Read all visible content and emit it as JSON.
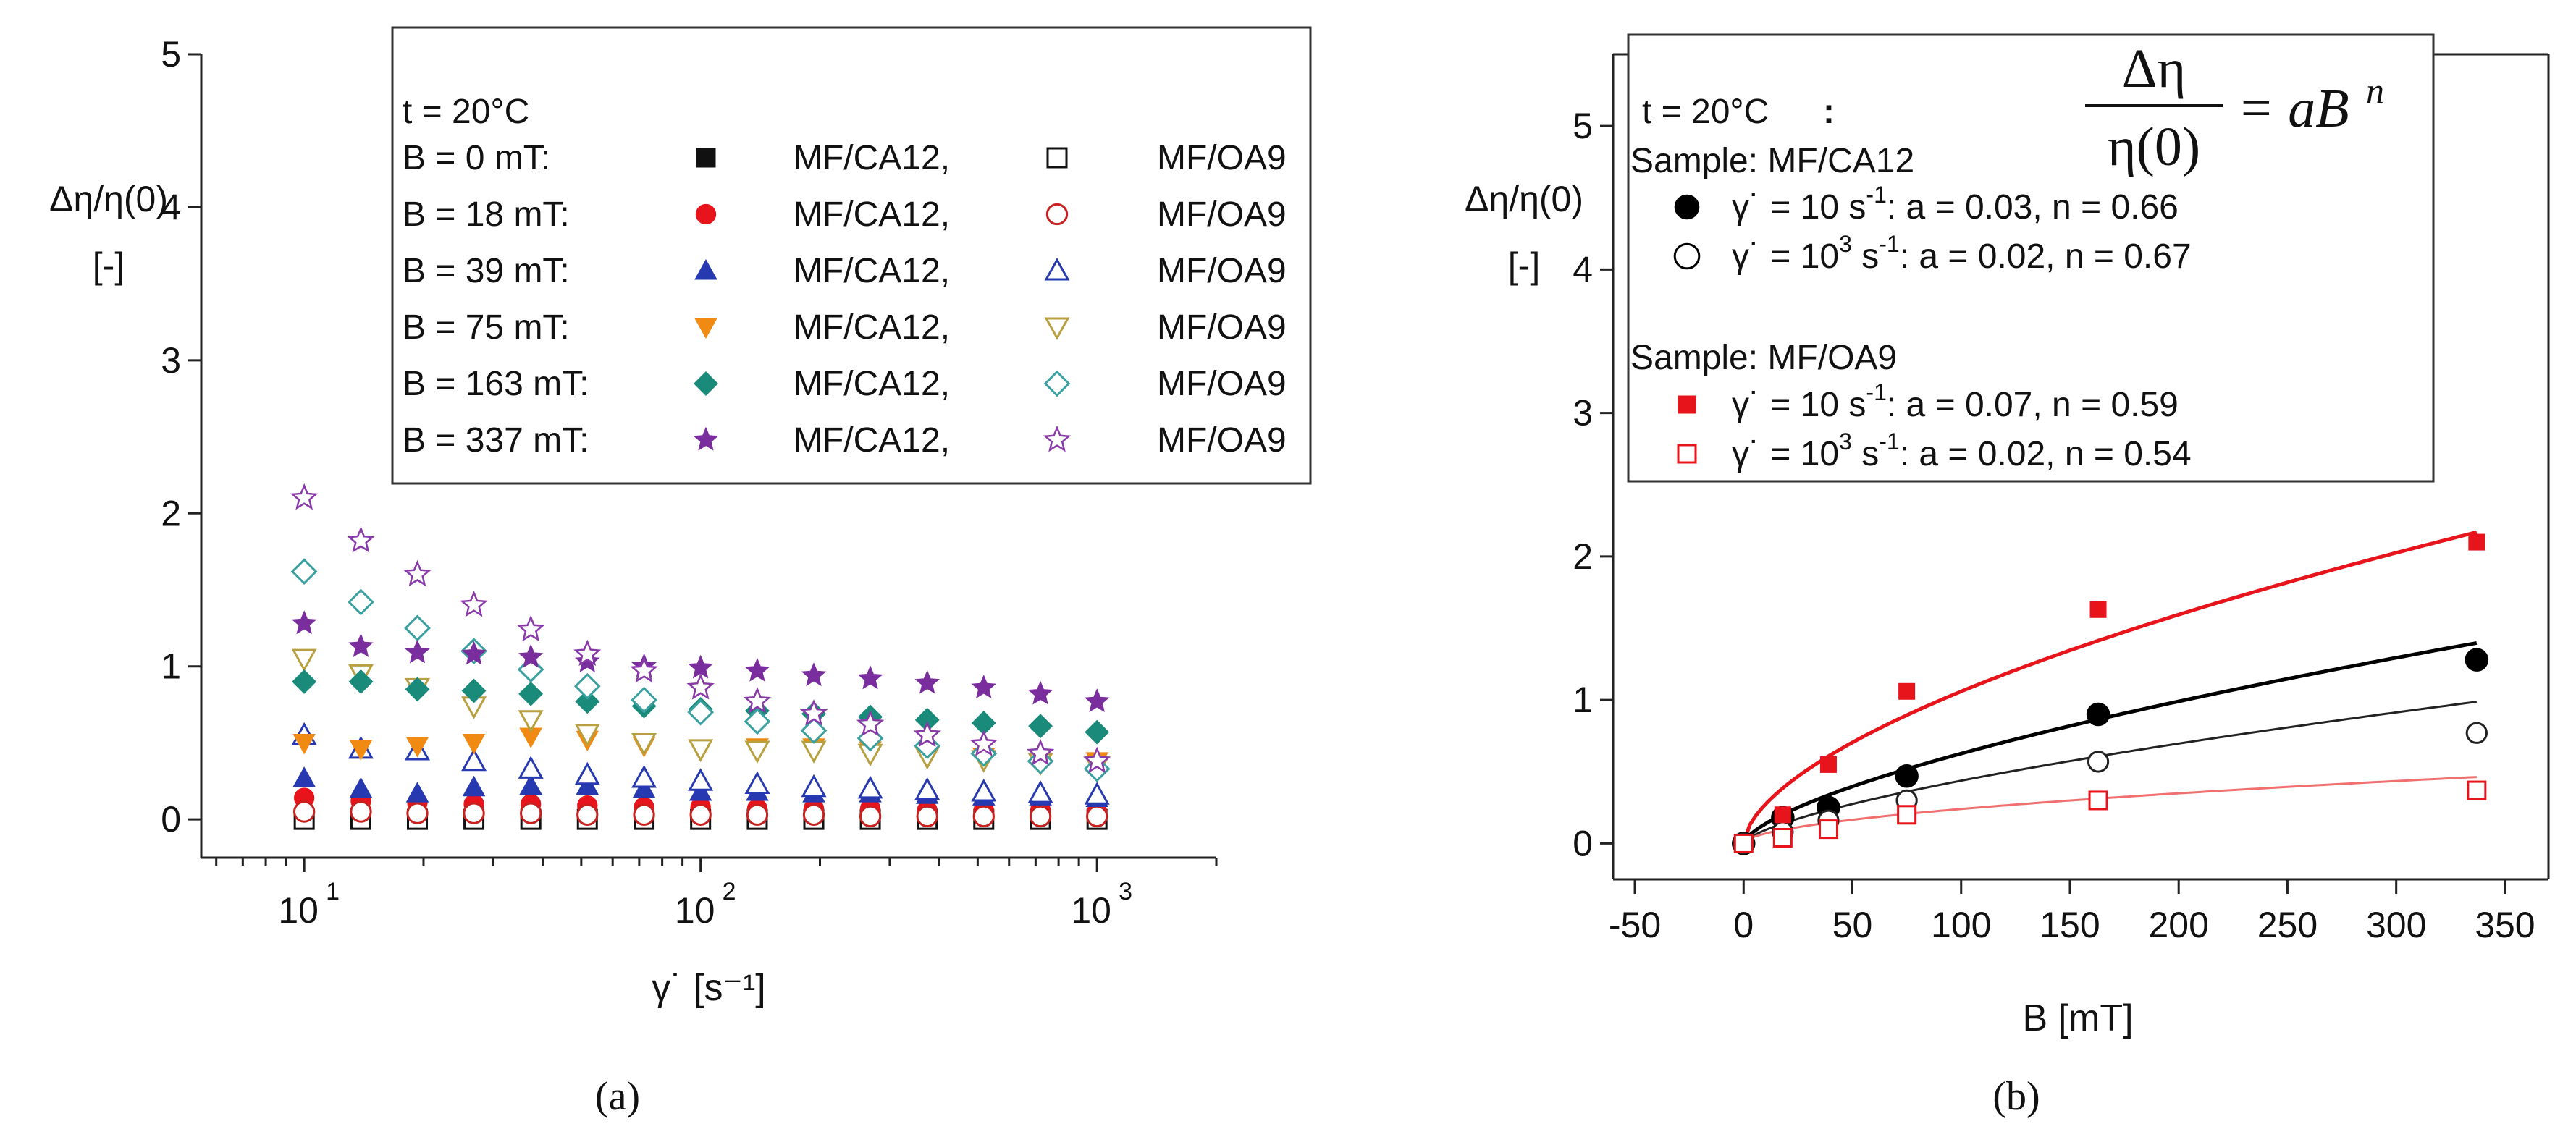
{
  "chart_data": [
    {
      "type": "scatter",
      "panel": "(a)",
      "xlabel": "γ˙ [s⁻¹]",
      "ylabel": "Δη/η(0)",
      "yunit": "[-]",
      "xscale": "log",
      "xlim": [
        5.5,
        2000
      ],
      "ylim": [
        -0.25,
        5
      ],
      "x_ticks": [
        {
          "v": 10,
          "base": "10",
          "exp": "1"
        },
        {
          "v": 100,
          "base": "10",
          "exp": "2"
        },
        {
          "v": 1000,
          "base": "10",
          "exp": "3"
        }
      ],
      "y_ticks": [
        "0",
        "1",
        "2",
        "3",
        "4",
        "5"
      ],
      "x": [
        10,
        13.9,
        19.3,
        26.8,
        37.3,
        51.8,
        72,
        100,
        139,
        193,
        268,
        373,
        518,
        720,
        1000
      ],
      "legend": {
        "title": "t = 20°C",
        "position": "top-right",
        "rows": [
          {
            "label": "B =   0 mT:",
            "a": "MF/CA12,",
            "b": "MF/OA9"
          },
          {
            "label": "B =  18 mT:",
            "a": "MF/CA12,",
            "b": "MF/OA9"
          },
          {
            "label": "B =  39 mT:",
            "a": "MF/CA12,",
            "b": "MF/OA9"
          },
          {
            "label": "B =  75 mT:",
            "a": "MF/CA12,",
            "b": "MF/OA9"
          },
          {
            "label": "B = 163 mT:",
            "a": "MF/CA12,",
            "b": "MF/OA9"
          },
          {
            "label": "B = 337 mT:",
            "a": "MF/CA12,",
            "b": "MF/OA9"
          }
        ]
      },
      "series": [
        {
          "name": "B = 0 mT, MF/CA12",
          "marker": "square",
          "filled": true,
          "color": "#111111",
          "values": [
            0,
            0,
            0,
            0,
            0,
            0,
            0,
            0,
            0,
            0,
            0,
            0,
            0,
            0,
            0
          ]
        },
        {
          "name": "B = 0 mT, MF/OA9",
          "marker": "square",
          "filled": false,
          "color": "#111111",
          "values": [
            0,
            0,
            0,
            0,
            0,
            0,
            0,
            0,
            0,
            0,
            0,
            0,
            0,
            0,
            0
          ]
        },
        {
          "name": "B = 18 mT, MF/CA12",
          "marker": "circle",
          "filled": true,
          "color": "#e8141c",
          "values": [
            0.14,
            0.12,
            0.11,
            0.1,
            0.1,
            0.09,
            0.08,
            0.08,
            0.07,
            0.07,
            0.07,
            0.06,
            0.06,
            0.06,
            0.05
          ]
        },
        {
          "name": "B = 18 mT, MF/OA9",
          "marker": "circle",
          "filled": false,
          "color": "#c8201e",
          "values": [
            0.05,
            0.05,
            0.04,
            0.04,
            0.04,
            0.03,
            0.03,
            0.03,
            0.03,
            0.03,
            0.02,
            0.02,
            0.02,
            0.02,
            0.02
          ]
        },
        {
          "name": "B = 39 mT, MF/CA12",
          "marker": "triangle-up",
          "filled": true,
          "color": "#2639b0",
          "values": [
            0.27,
            0.2,
            0.17,
            0.21,
            0.22,
            0.22,
            0.2,
            0.18,
            0.18,
            0.17,
            0.17,
            0.16,
            0.15,
            0.15,
            0.14
          ]
        },
        {
          "name": "B = 39 mT, MF/OA9",
          "marker": "triangle-up",
          "filled": false,
          "color": "#2639b0",
          "values": [
            0.55,
            0.46,
            0.45,
            0.38,
            0.33,
            0.29,
            0.27,
            0.25,
            0.23,
            0.21,
            0.2,
            0.19,
            0.18,
            0.17,
            0.16
          ]
        },
        {
          "name": "B = 75 mT, MF/CA12",
          "marker": "triangle-down",
          "filled": true,
          "color": "#f08a12",
          "values": [
            0.5,
            0.46,
            0.48,
            0.5,
            0.54,
            0.52,
            0.48,
            0.45,
            0.47,
            0.47,
            0.45,
            0.42,
            0.41,
            0.4,
            0.38
          ]
        },
        {
          "name": "B = 75 mT, MF/OA9",
          "marker": "triangle-down",
          "filled": false,
          "color": "#b8a040",
          "values": [
            1.05,
            0.95,
            0.86,
            0.74,
            0.65,
            0.56,
            0.5,
            0.46,
            0.45,
            0.45,
            0.43,
            0.41,
            0.39,
            0.37,
            0.35
          ]
        },
        {
          "name": "B = 163 mT, MF/CA12",
          "marker": "diamond",
          "filled": true,
          "color": "#1a8a7a",
          "values": [
            0.9,
            0.9,
            0.85,
            0.84,
            0.82,
            0.77,
            0.74,
            0.72,
            0.71,
            0.69,
            0.67,
            0.65,
            0.63,
            0.61,
            0.57
          ]
        },
        {
          "name": "B = 163 mT, MF/OA9",
          "marker": "diamond",
          "filled": false,
          "color": "#3aa0a0",
          "values": [
            1.62,
            1.42,
            1.25,
            1.1,
            0.98,
            0.87,
            0.78,
            0.7,
            0.64,
            0.58,
            0.53,
            0.48,
            0.43,
            0.38,
            0.33
          ]
        },
        {
          "name": "B = 337 mT, MF/CA12",
          "marker": "star",
          "filled": true,
          "color": "#7a2e9e",
          "values": [
            1.28,
            1.13,
            1.09,
            1.08,
            1.06,
            1.03,
            1.0,
            0.99,
            0.97,
            0.94,
            0.92,
            0.89,
            0.86,
            0.82,
            0.77
          ]
        },
        {
          "name": "B = 337 mT, MF/OA9",
          "marker": "star",
          "filled": false,
          "color": "#8a3aa8",
          "values": [
            2.1,
            1.82,
            1.6,
            1.4,
            1.24,
            1.08,
            0.97,
            0.86,
            0.77,
            0.69,
            0.62,
            0.55,
            0.49,
            0.43,
            0.38
          ]
        }
      ]
    },
    {
      "type": "scatter",
      "panel": "(b)",
      "xlabel": "B  [mT]",
      "ylabel": "Δη/η(0)",
      "yunit": "[-]",
      "xlim": [
        -60,
        370
      ],
      "ylim": [
        -0.25,
        5.5
      ],
      "x_ticks": [
        "-50",
        "0",
        "50",
        "100",
        "150",
        "200",
        "250",
        "300",
        "350"
      ],
      "y_ticks": [
        "0",
        "1",
        "2",
        "3",
        "4",
        "5"
      ],
      "formula": {
        "numerator": "Δη",
        "denominator": "η(0)",
        "rhs": "= aB",
        "exponent": "n"
      },
      "legend": {
        "title": "t = 20°C",
        "colon": ":",
        "position": "top-left",
        "sample1": "Sample: MF/CA12",
        "sample2": "Sample: MF/OA9",
        "entries": [
          {
            "gamma": "γ˙ = 10 s",
            "exp": "-1",
            "fit": ": a = 0.03, n = 0.66",
            "marker": "circle",
            "filled": true,
            "color": "#000000"
          },
          {
            "gamma": "γ˙ = 10",
            "gexp": "3",
            "unit": " s",
            "exp": "-1",
            "fit": ": a = 0.02, n = 0.67",
            "marker": "circle",
            "filled": false,
            "color": "#000000"
          },
          {
            "gamma": "γ˙ = 10 s",
            "exp": "-1",
            "fit": ": a = 0.07, n = 0.59",
            "marker": "square",
            "filled": true,
            "color": "#e8141c"
          },
          {
            "gamma": "γ˙ = 10",
            "gexp": "3",
            "unit": " s",
            "exp": "-1",
            "fit": ": a = 0.02, n = 0.54",
            "marker": "square",
            "filled": false,
            "color": "#e8141c"
          }
        ]
      },
      "series": [
        {
          "name": "MF/CA12, γ˙ = 10 s-1",
          "marker": "circle",
          "filled": true,
          "color": "#000000",
          "x": [
            0,
            18,
            39,
            75,
            163,
            337
          ],
          "values": [
            0,
            0.18,
            0.25,
            0.47,
            0.9,
            1.28
          ],
          "fit": {
            "a": 0.03,
            "n": 0.66,
            "color": "#000000",
            "width": 5
          }
        },
        {
          "name": "MF/CA12, γ˙ = 10^3 s-1",
          "marker": "circle",
          "filled": false,
          "color": "#222222",
          "x": [
            0,
            18,
            39,
            75,
            163,
            337
          ],
          "values": [
            0,
            0.08,
            0.16,
            0.3,
            0.57,
            0.77
          ],
          "fit": {
            "a": 0.02,
            "n": 0.67,
            "color": "#222222",
            "width": 3
          }
        },
        {
          "name": "MF/OA9, γ˙ = 10 s-1",
          "marker": "square",
          "filled": true,
          "color": "#e8141c",
          "x": [
            0,
            18,
            39,
            75,
            163,
            337
          ],
          "values": [
            0,
            0.2,
            0.55,
            1.06,
            1.63,
            2.1
          ],
          "fit": {
            "a": 0.07,
            "n": 0.59,
            "color": "#e8141c",
            "width": 5
          }
        },
        {
          "name": "MF/OA9, γ˙ = 10^3 s-1",
          "marker": "square",
          "filled": false,
          "color": "#e8141c",
          "x": [
            0,
            18,
            39,
            75,
            163,
            337
          ],
          "values": [
            0,
            0.04,
            0.1,
            0.2,
            0.3,
            0.37
          ],
          "fit": {
            "a": 0.02,
            "n": 0.54,
            "color": "#f07070",
            "width": 3
          }
        }
      ]
    }
  ]
}
